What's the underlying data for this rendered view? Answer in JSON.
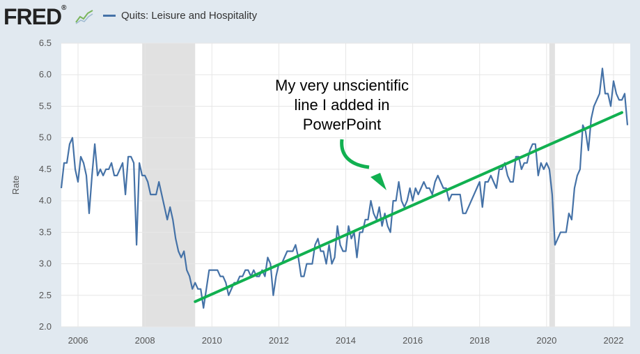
{
  "header": {
    "logo_text": "FRED",
    "logo_mark": "®",
    "logo_icon": "line-chart-icon",
    "legend_label": "Quits: Leisure and Hospitality"
  },
  "colors": {
    "series": "#4572a7",
    "trend": "#11b050",
    "recession": "#e1e1e1",
    "background": "#e1e9f0",
    "plot": "#ffffff",
    "grid": "#e6e6e6"
  },
  "chart_data": {
    "type": "line",
    "title": "Quits: Leisure and Hospitality",
    "xlabel": "",
    "ylabel": "Rate",
    "xlim": [
      2005.5,
      2022.5
    ],
    "ylim": [
      2.0,
      6.5
    ],
    "x_ticks": [
      "2006",
      "2008",
      "2010",
      "2012",
      "2014",
      "2016",
      "2018",
      "2020",
      "2022"
    ],
    "y_ticks": [
      "2.0",
      "2.5",
      "3.0",
      "3.5",
      "4.0",
      "4.5",
      "5.0",
      "5.5",
      "6.0",
      "6.5"
    ],
    "recessions": [
      [
        2007.917,
        2009.5
      ],
      [
        2020.083,
        2020.25
      ]
    ],
    "series": [
      {
        "name": "Quits: Leisure and Hospitality",
        "start": 2005.5,
        "step": 0.0833333,
        "values": [
          4.2,
          4.6,
          4.6,
          4.9,
          5.0,
          4.5,
          4.3,
          4.7,
          4.6,
          4.4,
          3.8,
          4.4,
          4.9,
          4.4,
          4.5,
          4.4,
          4.5,
          4.5,
          4.6,
          4.4,
          4.4,
          4.5,
          4.6,
          4.1,
          4.7,
          4.7,
          4.6,
          3.3,
          4.6,
          4.4,
          4.4,
          4.3,
          4.1,
          4.1,
          4.1,
          4.3,
          4.1,
          3.9,
          3.7,
          3.9,
          3.7,
          3.4,
          3.2,
          3.1,
          3.2,
          2.9,
          2.8,
          2.6,
          2.7,
          2.6,
          2.6,
          2.3,
          2.6,
          2.9,
          2.9,
          2.9,
          2.9,
          2.8,
          2.8,
          2.7,
          2.5,
          2.6,
          2.7,
          2.7,
          2.8,
          2.8,
          2.9,
          2.9,
          2.8,
          2.9,
          2.8,
          2.8,
          2.9,
          2.8,
          3.1,
          3.0,
          2.5,
          2.8,
          3.0,
          3.0,
          3.1,
          3.2,
          3.2,
          3.2,
          3.3,
          3.1,
          2.8,
          2.8,
          3.0,
          3.0,
          3.0,
          3.3,
          3.4,
          3.2,
          3.2,
          3.0,
          3.3,
          3.0,
          3.1,
          3.6,
          3.3,
          3.2,
          3.2,
          3.6,
          3.4,
          3.5,
          3.1,
          3.5,
          3.5,
          3.7,
          3.7,
          4.0,
          3.8,
          3.7,
          3.9,
          3.6,
          3.8,
          3.6,
          3.5,
          4.0,
          4.0,
          4.3,
          4.0,
          3.9,
          4.0,
          4.2,
          4.0,
          4.2,
          4.1,
          4.2,
          4.3,
          4.2,
          4.2,
          4.1,
          4.3,
          4.4,
          4.3,
          4.2,
          4.2,
          4.0,
          4.1,
          4.1,
          4.1,
          4.1,
          3.8,
          3.8,
          3.9,
          4.0,
          4.1,
          4.2,
          4.3,
          3.9,
          4.3,
          4.3,
          4.4,
          4.3,
          4.2,
          4.5,
          4.5,
          4.6,
          4.4,
          4.3,
          4.3,
          4.7,
          4.7,
          4.5,
          4.6,
          4.6,
          4.8,
          4.9,
          4.9,
          4.4,
          4.6,
          4.5,
          4.6,
          4.5,
          4.1,
          3.3,
          3.4,
          3.5,
          3.5,
          3.5,
          3.8,
          3.7,
          4.2,
          4.4,
          4.5,
          5.2,
          5.1,
          4.8,
          5.3,
          5.5,
          5.6,
          5.7,
          6.1,
          5.7,
          5.7,
          5.5,
          5.9,
          5.7,
          5.6,
          5.6,
          5.7,
          5.2
        ]
      }
    ],
    "trend_line": {
      "start": [
        2009.5,
        2.4
      ],
      "end": [
        2022.25,
        5.4
      ]
    },
    "annotation": {
      "lines": [
        "My very unscientific",
        "line I added in",
        "PowerPoint"
      ]
    }
  }
}
